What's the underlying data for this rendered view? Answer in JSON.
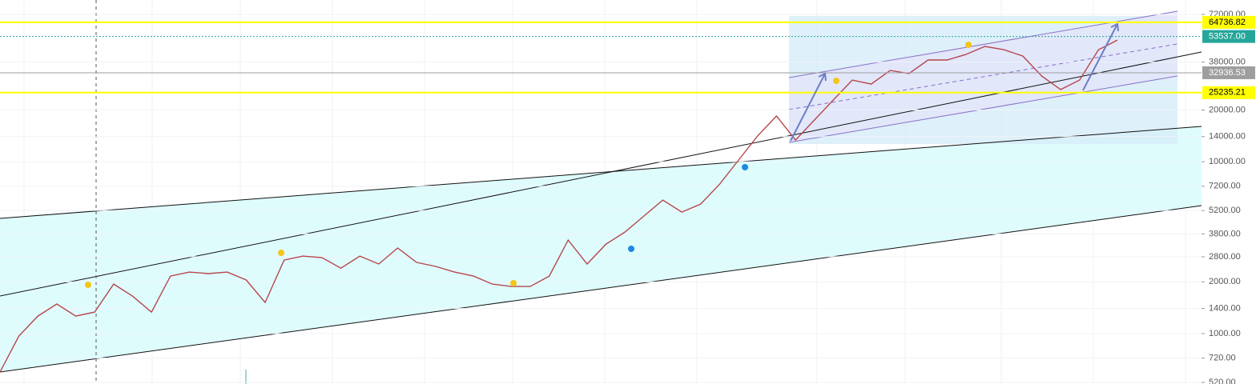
{
  "chart_data": {
    "type": "line",
    "log_scale": true,
    "ylim": [
      509,
      87300
    ],
    "yticks": [
      {
        "value": 72000,
        "label": "72000.00"
      },
      {
        "value": 38000,
        "label": "38000.00"
      },
      {
        "value": 20000,
        "label": "20000.00"
      },
      {
        "value": 14000,
        "label": "14000.00"
      },
      {
        "value": 10000,
        "label": "10000.00"
      },
      {
        "value": 7200,
        "label": "7200.00"
      },
      {
        "value": 5200,
        "label": "5200.00"
      },
      {
        "value": 3800,
        "label": "3800.00"
      },
      {
        "value": 2800,
        "label": "2800.00"
      },
      {
        "value": 2000,
        "label": "2000.00"
      },
      {
        "value": 1400,
        "label": "1400.00"
      },
      {
        "value": 1000,
        "label": "1000.00"
      },
      {
        "value": 720,
        "label": "720.00"
      },
      {
        "value": 520,
        "label": "520.00"
      }
    ],
    "color": "#b5474b",
    "values": [
      597,
      968,
      1265,
      1486,
      1265,
      1334,
      1941,
      1652,
      1334,
      2162,
      2280,
      2233,
      2280,
      2051,
      1517,
      2679,
      2825,
      2767,
      2404,
      2825,
      2541,
      3148,
      2595,
      2460,
      2280,
      2162,
      1941,
      1880,
      1880,
      2162,
      3500,
      2541,
      3319,
      3900,
      4831,
      5984,
      5093,
      5675,
      7413,
      10233,
      14125,
      18447,
      13366,
      17495,
      22855,
      29857,
      28311,
      33960,
      32589,
      39084,
      39084,
      42096,
      46880,
      44872,
      41214,
      31550,
      26303,
      29857,
      44872,
      51053
    ],
    "levels": [
      {
        "value": 64736.82,
        "label": "64736.82",
        "color": "#ffff00"
      },
      {
        "value": 53537.0,
        "label": "53537.00",
        "color": "#26a69a"
      },
      {
        "value": 32936.53,
        "label": "32936.53",
        "color": "#9e9e9e"
      },
      {
        "value": 25235.21,
        "label": "25235.21",
        "color": "#ffff00"
      }
    ]
  }
}
